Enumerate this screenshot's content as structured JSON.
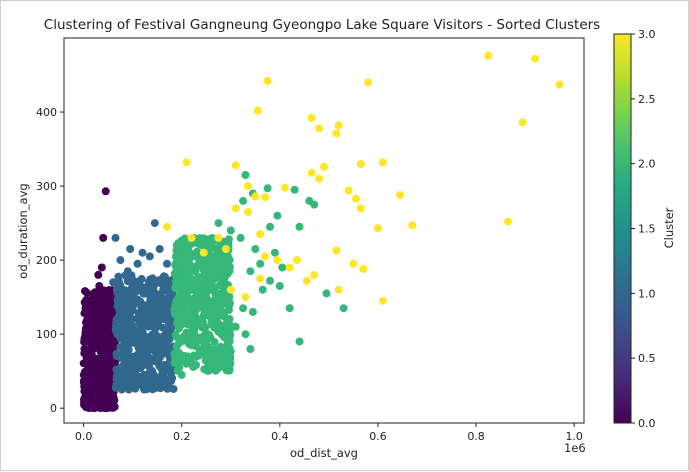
{
  "chart_data": {
    "type": "scatter",
    "title": "Clustering of Festival Gangneung Gyeongpo Lake Square Visitors - Sorted Clusters",
    "xlabel": "od_dist_avg",
    "ylabel": "od_duration_avg",
    "x_offset_text": "1e6",
    "x_scale_factor": 1000000,
    "xlim": [
      -40000,
      1020000
    ],
    "ylim": [
      -20,
      500
    ],
    "xticks": [
      0.0,
      0.2,
      0.4,
      0.6,
      0.8,
      1.0
    ],
    "xtick_labels": [
      "0.0",
      "0.2",
      "0.4",
      "0.6",
      "0.8",
      "1.0"
    ],
    "yticks": [
      0,
      100,
      200,
      300,
      400
    ],
    "ytick_labels": [
      "0",
      "100",
      "200",
      "300",
      "400"
    ],
    "colorbar": {
      "label": "Cluster",
      "range": [
        0,
        3
      ],
      "ticks": [
        0.0,
        0.5,
        1.0,
        1.5,
        2.0,
        2.5,
        3.0
      ],
      "tick_labels": [
        "0.0",
        "0.5",
        "1.0",
        "1.5",
        "2.0",
        "2.5",
        "3.0"
      ],
      "colormap": "viridis"
    },
    "series": [
      {
        "cluster": 0,
        "color": "#440154",
        "dense_region": {
          "x_range": [
            0,
            65000
          ],
          "y_range": [
            0,
            160
          ]
        },
        "points": [
          [
            45000,
            293
          ],
          [
            40000,
            230
          ],
          [
            37000,
            190
          ],
          [
            30000,
            180
          ],
          [
            32000,
            165
          ],
          [
            24000,
            150
          ],
          [
            18000,
            140
          ],
          [
            10000,
            125
          ],
          [
            25000,
            120
          ],
          [
            35000,
            110
          ],
          [
            50000,
            100
          ],
          [
            55000,
            90
          ],
          [
            60000,
            80
          ],
          [
            5000,
            60
          ],
          [
            15000,
            40
          ],
          [
            40000,
            20
          ],
          [
            20000,
            5
          ],
          [
            3000,
            15
          ],
          [
            62000,
            50
          ]
        ]
      },
      {
        "cluster": 1,
        "color": "#31688e",
        "dense_region": {
          "x_range": [
            65000,
            185000
          ],
          "y_range": [
            25,
            180
          ]
        },
        "points": [
          [
            145000,
            250
          ],
          [
            65000,
            230
          ],
          [
            95000,
            215
          ],
          [
            120000,
            210
          ],
          [
            155000,
            215
          ],
          [
            135000,
            205
          ],
          [
            75000,
            200
          ],
          [
            110000,
            195
          ],
          [
            170000,
            195
          ],
          [
            90000,
            185
          ],
          [
            60000,
            170
          ],
          [
            80000,
            160
          ],
          [
            165000,
            140
          ],
          [
            180000,
            110
          ],
          [
            175000,
            70
          ],
          [
            140000,
            50
          ],
          [
            100000,
            40
          ],
          [
            120000,
            30
          ]
        ]
      },
      {
        "cluster": 2,
        "color": "#35b779",
        "dense_region": {
          "x_range": [
            185000,
            300000
          ],
          "y_range": [
            50,
            230
          ]
        },
        "points": [
          [
            330000,
            315
          ],
          [
            375000,
            297
          ],
          [
            345000,
            290
          ],
          [
            430000,
            295
          ],
          [
            325000,
            280
          ],
          [
            460000,
            280
          ],
          [
            470000,
            275
          ],
          [
            395000,
            260
          ],
          [
            380000,
            245
          ],
          [
            440000,
            245
          ],
          [
            300000,
            240
          ],
          [
            320000,
            230
          ],
          [
            275000,
            250
          ],
          [
            250000,
            225
          ],
          [
            225000,
            230
          ],
          [
            190000,
            220
          ],
          [
            350000,
            215
          ],
          [
            390000,
            210
          ],
          [
            360000,
            195
          ],
          [
            405000,
            190
          ],
          [
            340000,
            185
          ],
          [
            380000,
            172
          ],
          [
            290000,
            165
          ],
          [
            365000,
            160
          ],
          [
            400000,
            165
          ],
          [
            495000,
            155
          ],
          [
            530000,
            135
          ],
          [
            325000,
            135
          ],
          [
            345000,
            130
          ],
          [
            420000,
            135
          ],
          [
            260000,
            125
          ],
          [
            310000,
            110
          ],
          [
            330000,
            100
          ],
          [
            440000,
            90
          ],
          [
            220000,
            85
          ],
          [
            340000,
            80
          ],
          [
            210000,
            60
          ],
          [
            200000,
            45
          ],
          [
            195000,
            55
          ]
        ]
      },
      {
        "cluster": 3,
        "color": "#fde725",
        "points": [
          [
            825000,
            476
          ],
          [
            920000,
            472
          ],
          [
            970000,
            437
          ],
          [
            375000,
            442
          ],
          [
            355000,
            402
          ],
          [
            580000,
            440
          ],
          [
            465000,
            392
          ],
          [
            520000,
            382
          ],
          [
            480000,
            378
          ],
          [
            515000,
            371
          ],
          [
            895000,
            386
          ],
          [
            210000,
            332
          ],
          [
            310000,
            328
          ],
          [
            490000,
            326
          ],
          [
            565000,
            330
          ],
          [
            610000,
            332
          ],
          [
            465000,
            318
          ],
          [
            480000,
            310
          ],
          [
            335000,
            300
          ],
          [
            410000,
            298
          ],
          [
            370000,
            285
          ],
          [
            350000,
            286
          ],
          [
            555000,
            283
          ],
          [
            645000,
            288
          ],
          [
            540000,
            294
          ],
          [
            310000,
            270
          ],
          [
            335000,
            265
          ],
          [
            565000,
            270
          ],
          [
            670000,
            247
          ],
          [
            600000,
            243
          ],
          [
            865000,
            252
          ],
          [
            170000,
            245
          ],
          [
            220000,
            230
          ],
          [
            275000,
            230
          ],
          [
            360000,
            235
          ],
          [
            245000,
            210
          ],
          [
            290000,
            215
          ],
          [
            370000,
            205
          ],
          [
            395000,
            200
          ],
          [
            435000,
            200
          ],
          [
            515000,
            213
          ],
          [
            550000,
            195
          ],
          [
            570000,
            188
          ],
          [
            420000,
            190
          ],
          [
            360000,
            175
          ],
          [
            470000,
            180
          ],
          [
            455000,
            172
          ],
          [
            610000,
            145
          ],
          [
            520000,
            160
          ],
          [
            300000,
            160
          ],
          [
            330000,
            150
          ]
        ]
      }
    ]
  }
}
